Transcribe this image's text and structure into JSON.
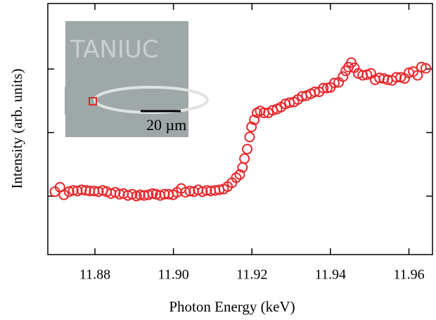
{
  "chart_data": {
    "type": "scatter",
    "x_label": "Photon Energy (keV)",
    "y_label": "Intensity (arb. units)",
    "xlim": [
      11.868,
      11.966
    ],
    "ylim": [
      0.08,
      4.03
    ],
    "xticks": [
      11.88,
      {
        "value": 11.9,
        "label": "11.90"
      },
      11.92,
      11.94,
      11.96
    ],
    "yticks": [
      1,
      2,
      3
    ],
    "show_ytick_labels": false,
    "color": "#e8262b",
    "marker": "open-circle",
    "inset": {
      "text": "TANIUC",
      "scale_label": "20 µm"
    },
    "x": [
      11.8698,
      11.8711,
      11.8721,
      11.8734,
      11.8745,
      11.8755,
      11.8766,
      11.8777,
      11.8787,
      11.8798,
      11.8809,
      11.882,
      11.883,
      11.8841,
      11.8852,
      11.8863,
      11.8873,
      11.8884,
      11.8895,
      11.8906,
      11.8915,
      11.8925,
      11.8936,
      11.8947,
      11.8956,
      11.8966,
      11.8977,
      11.8988,
      11.8999,
      11.9009,
      11.902,
      11.9031,
      11.9042,
      11.9052,
      11.9063,
      11.9074,
      11.9085,
      11.9095,
      11.9106,
      11.9117,
      11.9128,
      11.9138,
      11.9149,
      11.916,
      11.9169,
      11.9176,
      11.9181,
      11.9188,
      11.9194,
      11.9199,
      11.9206,
      11.9213,
      11.9221,
      11.9231,
      11.9242,
      11.9253,
      11.9264,
      11.9274,
      11.9285,
      11.9296,
      11.9307,
      11.9317,
      11.9328,
      11.9339,
      11.935,
      11.936,
      11.9371,
      11.9382,
      11.9392,
      11.94,
      11.941,
      11.9421,
      11.9432,
      11.9439,
      11.9446,
      11.9453,
      11.9461,
      11.9471,
      11.9482,
      11.9493,
      11.9503,
      11.9514,
      11.9525,
      11.9536,
      11.9546,
      11.9557,
      11.9568,
      11.9579,
      11.9589,
      11.96,
      11.9611,
      11.9622,
      11.9632,
      11.9643
    ],
    "values": [
      1.07,
      1.14,
      1.02,
      1.07,
      1.09,
      1.08,
      1.1,
      1.09,
      1.08,
      1.08,
      1.07,
      1.09,
      1.07,
      1.04,
      1.06,
      1.03,
      1.04,
      1.01,
      1.03,
      1.0,
      1.02,
      1.01,
      1.02,
      1.04,
      1.03,
      1.01,
      1.03,
      1.03,
      1.02,
      1.06,
      1.12,
      1.06,
      1.08,
      1.07,
      1.1,
      1.07,
      1.09,
      1.08,
      1.09,
      1.1,
      1.11,
      1.15,
      1.21,
      1.29,
      1.34,
      1.45,
      1.59,
      1.74,
      1.93,
      2.09,
      2.2,
      2.31,
      2.34,
      2.31,
      2.31,
      2.35,
      2.37,
      2.4,
      2.45,
      2.47,
      2.48,
      2.52,
      2.57,
      2.58,
      2.61,
      2.64,
      2.64,
      2.7,
      2.7,
      2.71,
      2.78,
      2.79,
      2.88,
      2.97,
      3.03,
      3.1,
      3.02,
      2.93,
      2.9,
      2.91,
      2.93,
      2.83,
      2.86,
      2.85,
      2.83,
      2.82,
      2.87,
      2.87,
      2.85,
      2.94,
      2.96,
      2.9,
      3.03,
      3.01
    ]
  }
}
